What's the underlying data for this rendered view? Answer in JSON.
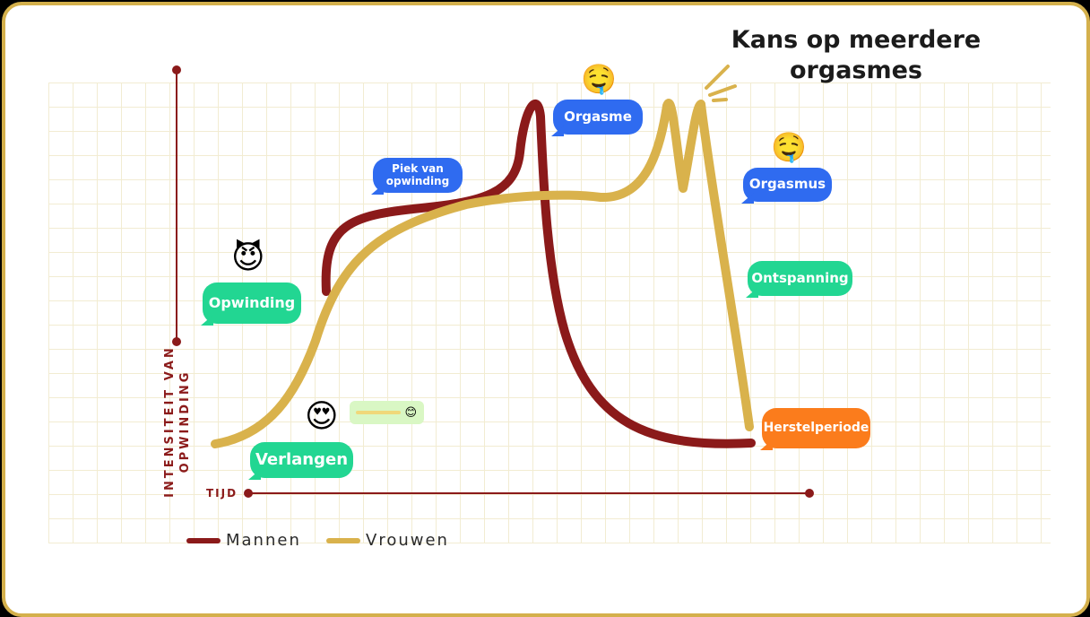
{
  "headline": "Kans op meerdere orgasmes",
  "axes": {
    "y_label": "INTENSITEIT VAN OPWINDING",
    "x_label": "TIJD"
  },
  "legend": [
    {
      "label": "Mannen",
      "color": "#8b1a1a"
    },
    {
      "label": "Vrouwen",
      "color": "#d9b24c"
    }
  ],
  "bubbles": {
    "opwinding": "Opwinding",
    "verlangen": "Verlangen",
    "piek": "Piek van opwinding",
    "orgasme": "Orgasme",
    "orgasmus": "Orgasmus",
    "ontspanning": "Ontspanning",
    "herstelperiode": "Herstelperiode"
  },
  "emoji": {
    "devil": "😈",
    "heart_eyes": "😍",
    "drool_1": "🤤",
    "drool_2": "🤤",
    "smile": "😊"
  },
  "colors": {
    "frame_border": "#d4b04c",
    "men_curve": "#8b1a1a",
    "women_curve": "#d9b24c",
    "bubble_blue": "#2f6bf0",
    "bubble_green": "#22d692",
    "bubble_orange": "#fb7c1c"
  }
}
